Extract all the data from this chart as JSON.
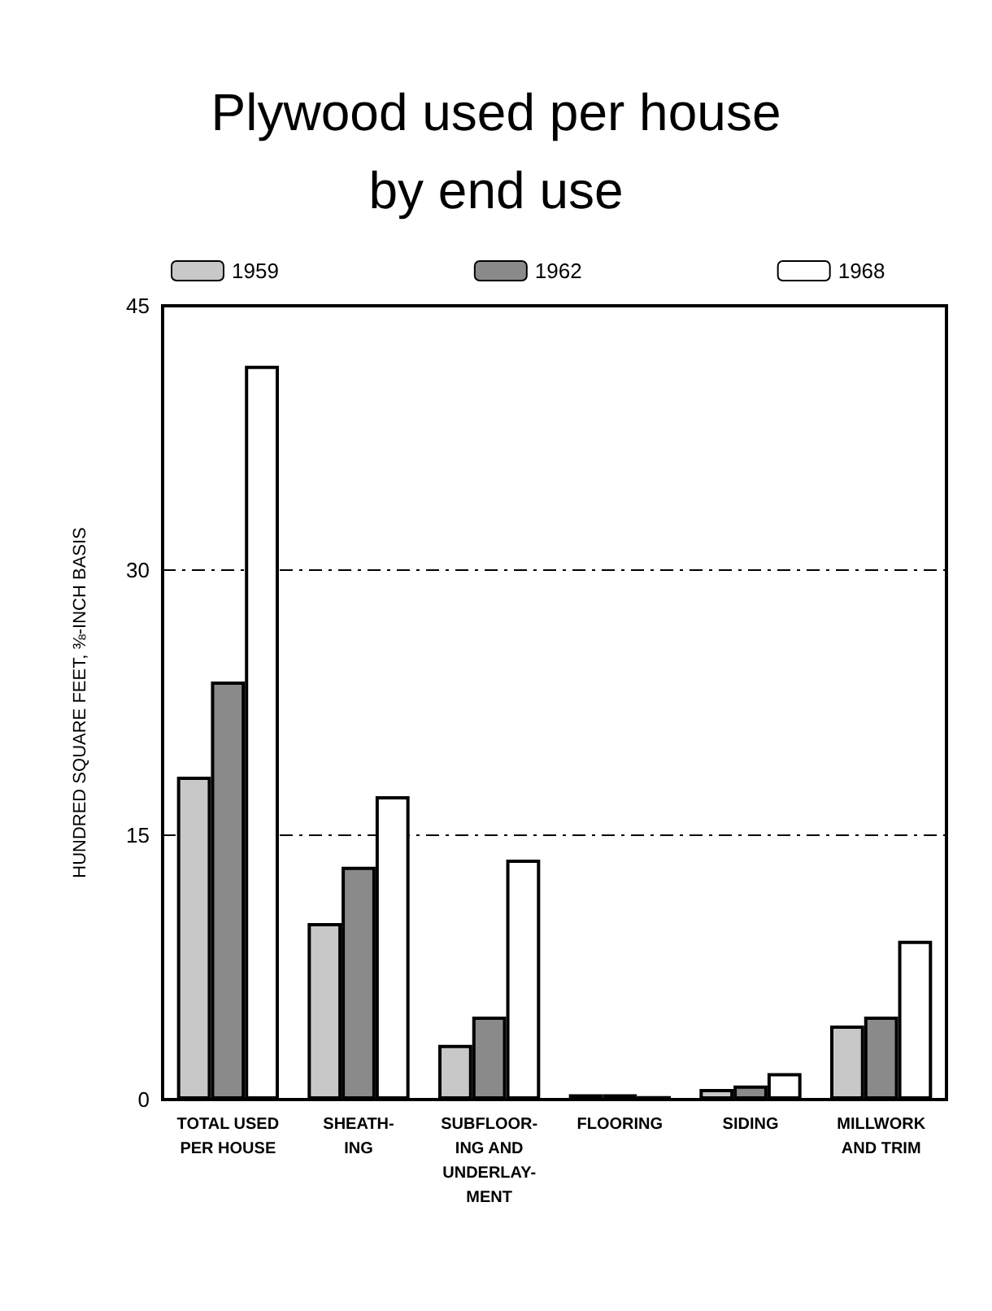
{
  "chart_data": {
    "type": "bar",
    "title": "Plywood used per house\nby end use",
    "ylabel": "HUNDRED SQUARE FEET, ⅜-INCH BASIS",
    "categories": [
      "TOTAL USED\nPER HOUSE",
      "SHEATH-\nING",
      "SUBFLOOR-\nING AND\nUNDERLAY-\nMENT",
      "FLOORING",
      "SIDING",
      "MILLWORK\nAND TRIM"
    ],
    "series": [
      {
        "name": "1959",
        "color": "#c8c8c8",
        "values": [
          18.3,
          10.0,
          3.1,
          0.3,
          0.6,
          4.2
        ]
      },
      {
        "name": "1962",
        "color": "#8a8a8a",
        "values": [
          23.7,
          13.2,
          4.7,
          0.3,
          0.8,
          4.7
        ]
      },
      {
        "name": "1968",
        "color": "#ffffff",
        "values": [
          41.6,
          17.2,
          13.6,
          0.2,
          1.5,
          9.0
        ]
      }
    ],
    "ylim": [
      0,
      45
    ],
    "yticks": [
      0,
      15,
      30,
      45
    ],
    "grid": "y",
    "legend": "top"
  }
}
